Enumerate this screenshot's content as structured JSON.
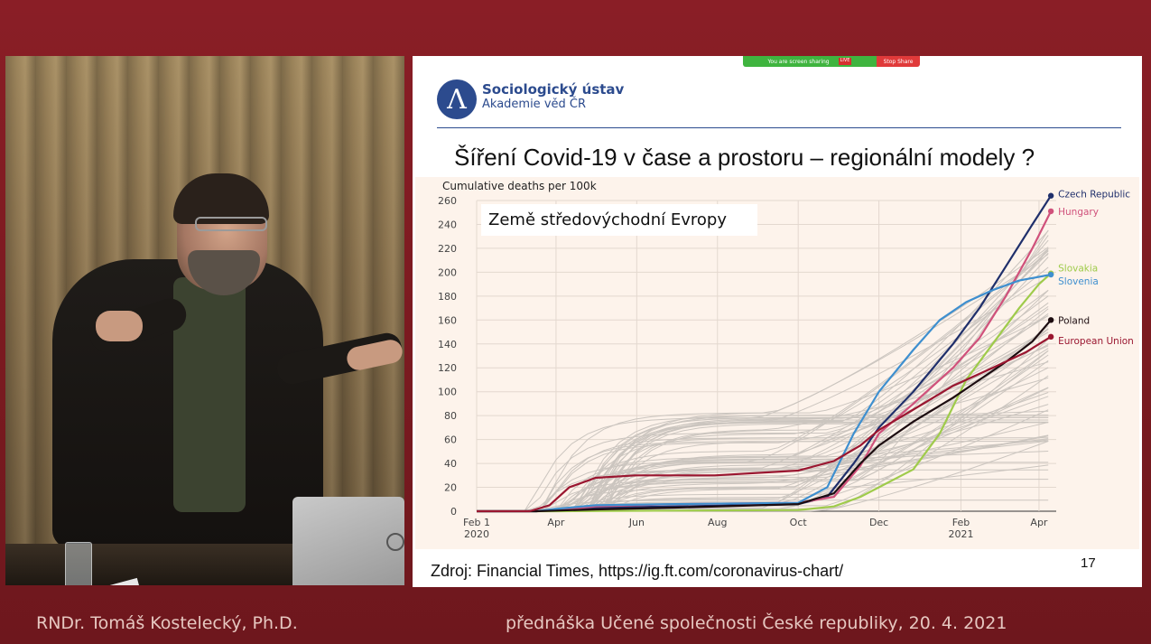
{
  "presenter": "RNDr. Tomáš Kostelecký, Ph.D.",
  "event": "přednáška Učené společnosti České republiky, 20. 4. 2021",
  "share_bar": {
    "sharing_text": "You are screen sharing",
    "live": "LIVE",
    "stop_label": "Stop Share"
  },
  "slide": {
    "org_name": "Sociologický ústav",
    "org_sub": "Akademie věd ČR",
    "title": "Šíření Covid-19 v čase a prostoru – regionální modely ?",
    "box_label": "Země středovýchodní Evropy",
    "source": "Zdroj: Financial Times, https://ig.ft.com/coronavirus-chart/",
    "page_number": "17"
  },
  "colors": {
    "background": "#7a1c22",
    "org_blue": "#2c4b8e",
    "chart_bg": "#fdf3eb",
    "background_lines": "#bdb8b2"
  },
  "chart_data": {
    "type": "line",
    "ylabel": "Cumulative deaths per 100k",
    "ylim": [
      0,
      260
    ],
    "yticks": [
      0,
      20,
      40,
      60,
      80,
      100,
      120,
      140,
      160,
      180,
      200,
      220,
      240,
      260
    ],
    "xticks": [
      {
        "x": 0,
        "label": "Feb 1",
        "sub": "2020"
      },
      {
        "x": 60,
        "label": "Apr",
        "sub": ""
      },
      {
        "x": 121,
        "label": "Jun",
        "sub": ""
      },
      {
        "x": 182,
        "label": "Aug",
        "sub": ""
      },
      {
        "x": 243,
        "label": "Oct",
        "sub": ""
      },
      {
        "x": 304,
        "label": "Dec",
        "sub": ""
      },
      {
        "x": 366,
        "label": "Feb",
        "sub": "2021"
      },
      {
        "x": 425,
        "label": "Apr",
        "sub": ""
      }
    ],
    "xlim": [
      0,
      438
    ],
    "x_unit": "days since 2020-02-01",
    "grid": true,
    "legend": "direct labels at line ends (right)",
    "series": [
      {
        "name": "Czech Republic",
        "color": "#1f2f6b",
        "points": [
          [
            0,
            0
          ],
          [
            45,
            0
          ],
          [
            60,
            1
          ],
          [
            90,
            3
          ],
          [
            150,
            4
          ],
          [
            243,
            6
          ],
          [
            265,
            12
          ],
          [
            285,
            40
          ],
          [
            304,
            70
          ],
          [
            330,
            100
          ],
          [
            360,
            140
          ],
          [
            380,
            170
          ],
          [
            400,
            205
          ],
          [
            420,
            240
          ],
          [
            434,
            264
          ]
        ]
      },
      {
        "name": "Hungary",
        "color": "#d0517b",
        "points": [
          [
            0,
            0
          ],
          [
            45,
            0
          ],
          [
            60,
            1
          ],
          [
            90,
            4
          ],
          [
            150,
            6
          ],
          [
            243,
            7
          ],
          [
            270,
            12
          ],
          [
            290,
            38
          ],
          [
            304,
            65
          ],
          [
            330,
            90
          ],
          [
            360,
            120
          ],
          [
            380,
            145
          ],
          [
            400,
            180
          ],
          [
            420,
            220
          ],
          [
            434,
            251
          ]
        ]
      },
      {
        "name": "Slovakia",
        "color": "#9fcb4b",
        "points": [
          [
            0,
            0
          ],
          [
            60,
            0
          ],
          [
            150,
            0.5
          ],
          [
            243,
            1
          ],
          [
            270,
            4
          ],
          [
            290,
            12
          ],
          [
            304,
            20
          ],
          [
            330,
            35
          ],
          [
            350,
            65
          ],
          [
            370,
            110
          ],
          [
            390,
            140
          ],
          [
            410,
            170
          ],
          [
            425,
            190
          ],
          [
            434,
            199
          ]
        ]
      },
      {
        "name": "Slovenia",
        "color": "#3e8fcf",
        "points": [
          [
            0,
            0
          ],
          [
            45,
            0
          ],
          [
            60,
            2
          ],
          [
            90,
            5
          ],
          [
            150,
            6
          ],
          [
            243,
            7
          ],
          [
            265,
            20
          ],
          [
            285,
            65
          ],
          [
            304,
            100
          ],
          [
            330,
            135
          ],
          [
            350,
            160
          ],
          [
            370,
            175
          ],
          [
            390,
            185
          ],
          [
            410,
            193
          ],
          [
            434,
            198
          ]
        ]
      },
      {
        "name": "Poland",
        "color": "#1c0c10",
        "points": [
          [
            0,
            0
          ],
          [
            45,
            0
          ],
          [
            60,
            0.5
          ],
          [
            90,
            1.5
          ],
          [
            150,
            3
          ],
          [
            243,
            6
          ],
          [
            270,
            15
          ],
          [
            290,
            40
          ],
          [
            304,
            55
          ],
          [
            330,
            75
          ],
          [
            360,
            95
          ],
          [
            380,
            110
          ],
          [
            400,
            125
          ],
          [
            420,
            142
          ],
          [
            434,
            160
          ]
        ]
      },
      {
        "name": "European Union",
        "color": "#9a1630",
        "points": [
          [
            0,
            0
          ],
          [
            40,
            0
          ],
          [
            55,
            5
          ],
          [
            70,
            20
          ],
          [
            90,
            28
          ],
          [
            120,
            30
          ],
          [
            180,
            30
          ],
          [
            243,
            34
          ],
          [
            270,
            42
          ],
          [
            290,
            55
          ],
          [
            304,
            68
          ],
          [
            330,
            85
          ],
          [
            360,
            105
          ],
          [
            390,
            120
          ],
          [
            415,
            133
          ],
          [
            434,
            146
          ]
        ]
      }
    ]
  }
}
